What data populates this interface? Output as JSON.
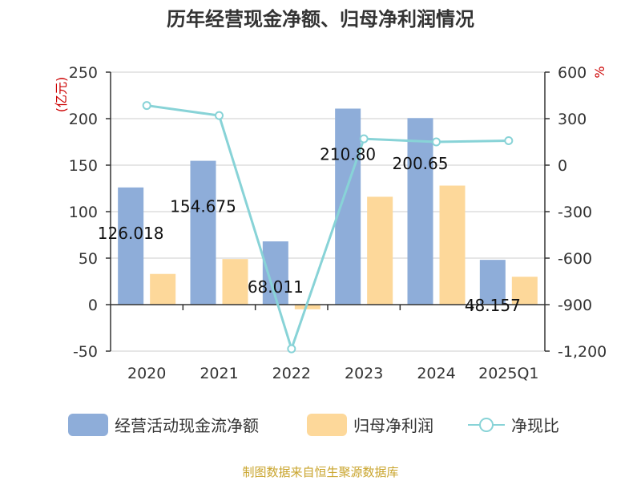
{
  "title": "历年经营现金净额、归母净利润情况",
  "source": "制图数据来自恒生聚源数据库",
  "colors": {
    "ocf": "#8eadd9",
    "profit": "#fdd89a",
    "ratio": "#88d3d7",
    "unit": "#cc0000",
    "source": "#c9a42c"
  },
  "chart_data": {
    "type": "bar",
    "categories": [
      "2020",
      "2021",
      "2022",
      "2023",
      "2024",
      "2025Q1"
    ],
    "y_left": {
      "unit": "(亿元)",
      "range": [
        -50,
        250
      ],
      "ticks": [
        "250",
        "200",
        "150",
        "100",
        "50",
        "0",
        "-50"
      ]
    },
    "y_right": {
      "unit": "%",
      "range": [
        -1200,
        600
      ],
      "ticks": [
        "600",
        "300",
        "0",
        "-300",
        "-600",
        "-900",
        "-1,200"
      ]
    },
    "series": [
      {
        "name": "经营活动现金流净额",
        "type": "bar",
        "axis": "left",
        "values": [
          126.018,
          154.675,
          68.011,
          210.803,
          200.65,
          48.157
        ],
        "labels": [
          "126.018",
          "154.675",
          "68.011",
          "210.80",
          "200.65",
          "48.157"
        ]
      },
      {
        "name": "归母净利润",
        "type": "bar",
        "axis": "left",
        "values": [
          33,
          49,
          -5,
          116,
          128,
          30
        ]
      },
      {
        "name": "净现比",
        "type": "line",
        "axis": "right",
        "values": [
          385,
          320,
          -1185,
          170,
          150,
          158
        ]
      }
    ],
    "grid": true,
    "legend": "bottom"
  }
}
